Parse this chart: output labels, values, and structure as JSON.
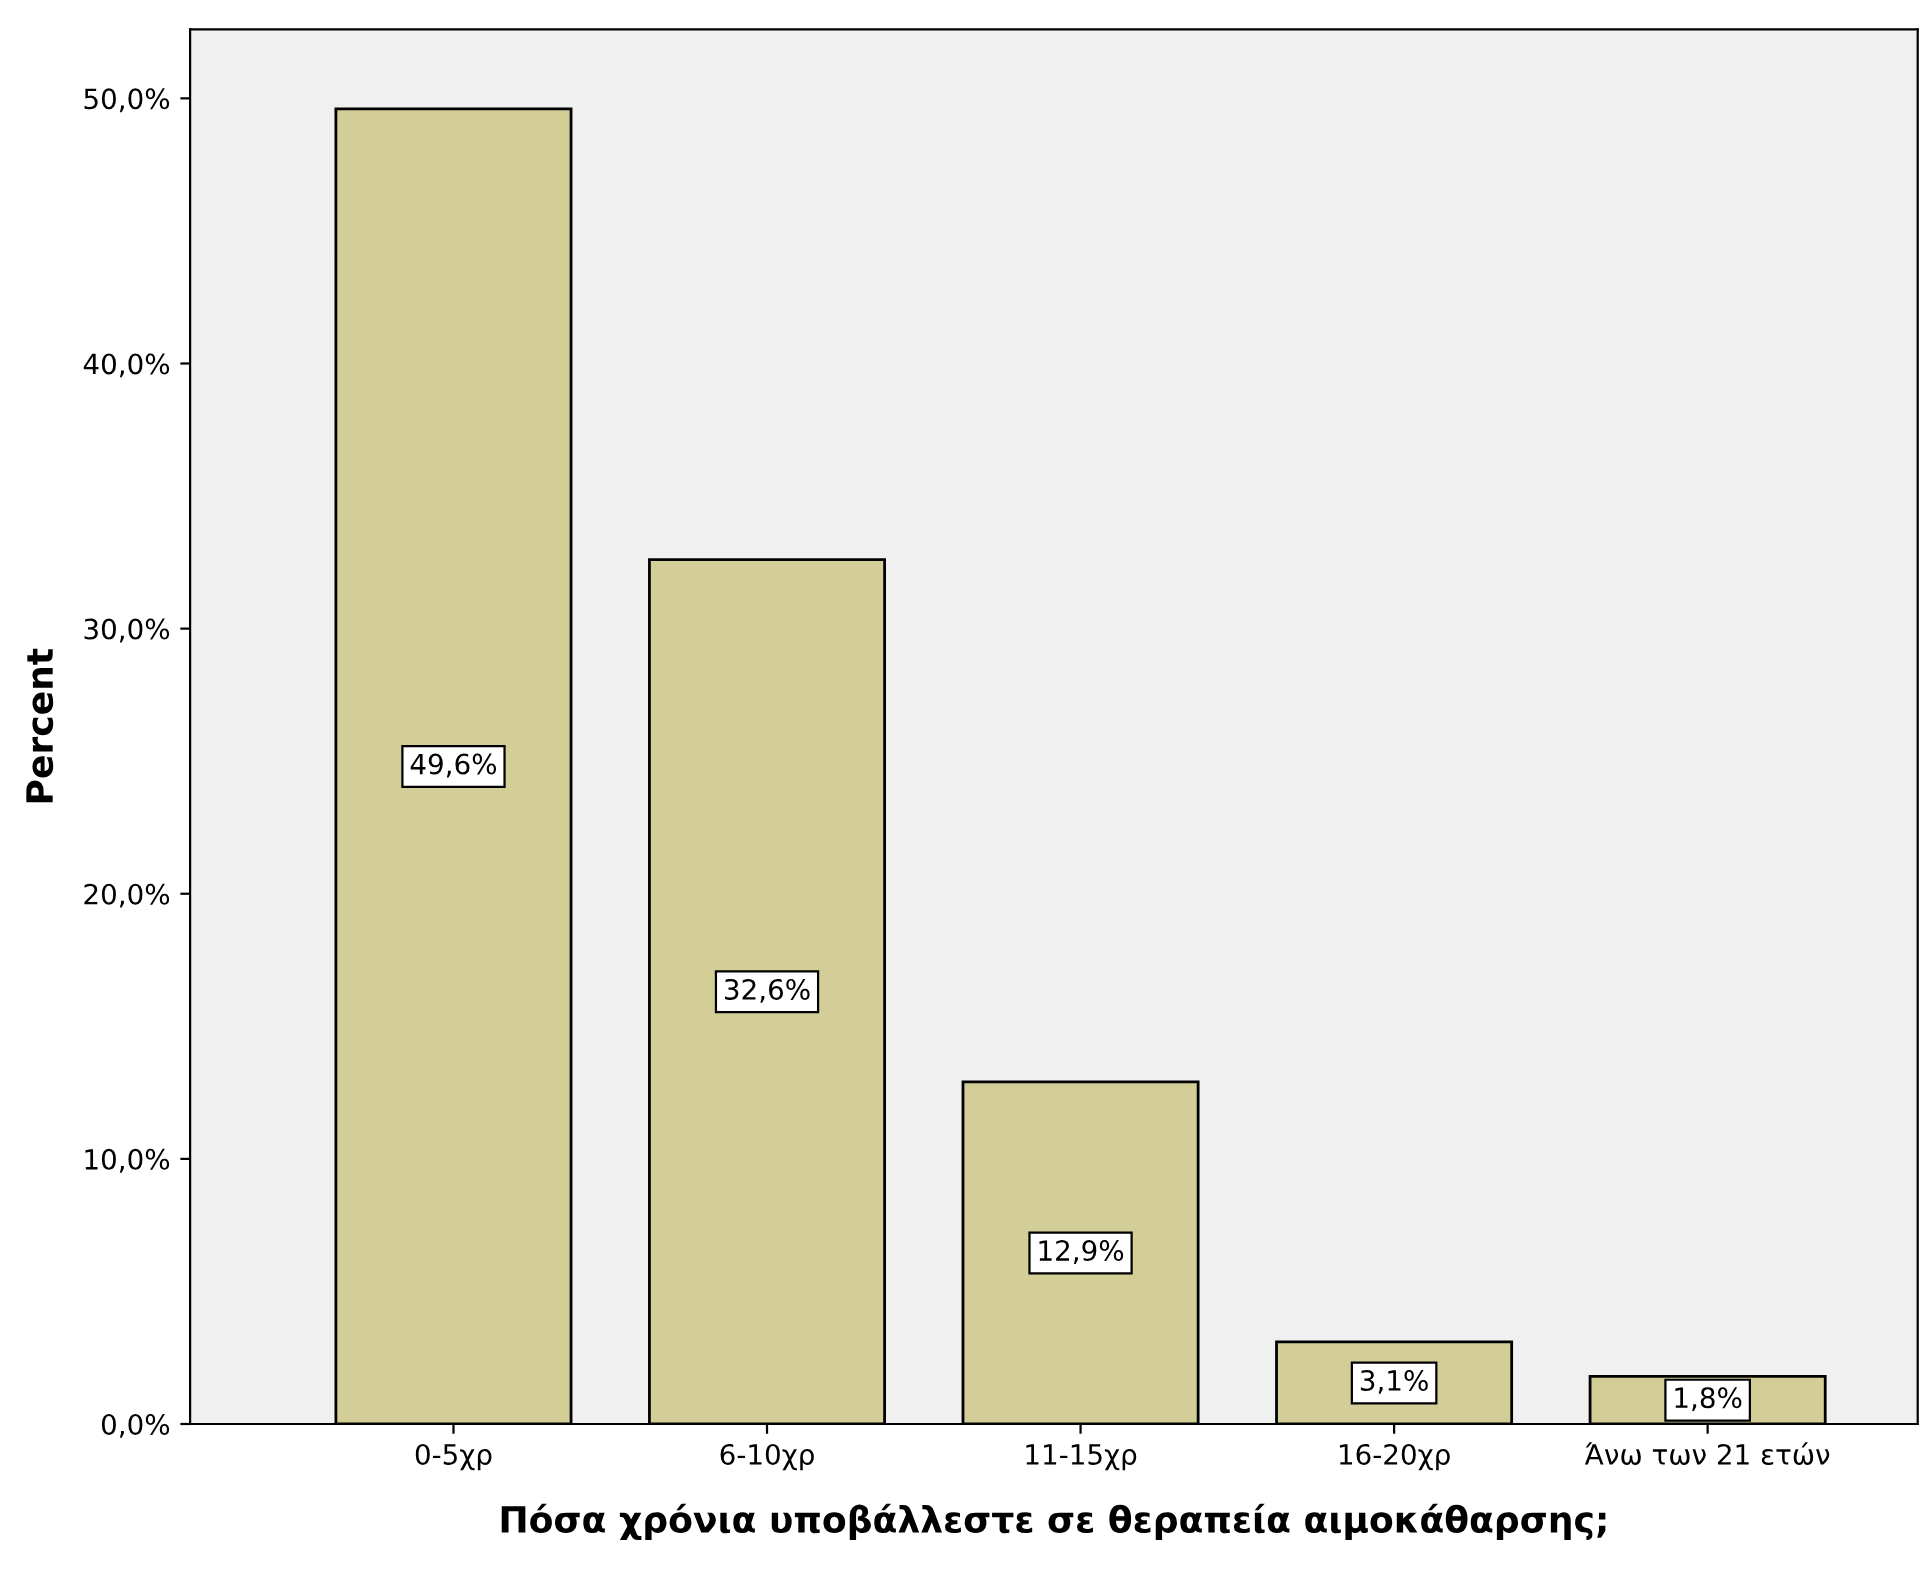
{
  "chart_data": {
    "type": "bar",
    "xlabel": "Πόσα χρόνια υποβάλλεστε σε θεραπεία αιμοκάθαρσης;",
    "ylabel": "Percent",
    "categories": [
      "0-5χρ",
      "6-10χρ",
      "11-15χρ",
      "16-20χρ",
      "Άνω των 21 ετών"
    ],
    "values": [
      49.6,
      32.6,
      12.9,
      3.1,
      1.8
    ],
    "value_labels": [
      "49,6%",
      "32,6%",
      "12,9%",
      "3,1%",
      "1,8%"
    ],
    "color": "#d3ce97",
    "ylim": [
      0,
      52.6
    ],
    "yticks": [
      {
        "value": 0,
        "label": "0,0%"
      },
      {
        "value": 10,
        "label": "10,0%"
      },
      {
        "value": 20,
        "label": "20,0%"
      },
      {
        "value": 30,
        "label": "30,0%"
      },
      {
        "value": 40,
        "label": "40,0%"
      },
      {
        "value": 50,
        "label": "50,0%"
      }
    ],
    "grid": false,
    "legend": false
  }
}
